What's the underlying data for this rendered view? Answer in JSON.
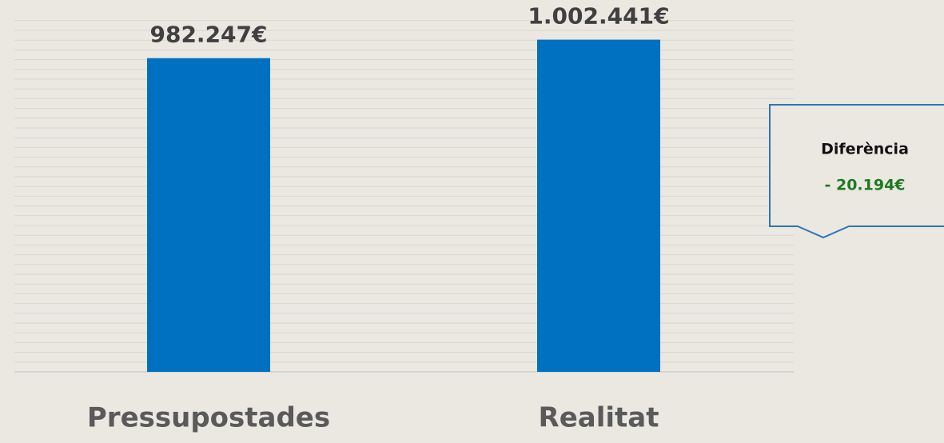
{
  "chart_data": {
    "type": "bar",
    "categories": [
      "Pressupostades",
      "Realitat"
    ],
    "values": [
      982247,
      1002441
    ],
    "value_labels": [
      "982.247€",
      "1.002.441€"
    ],
    "color": "#0070c0",
    "ylim": [
      640000,
      1030000
    ],
    "grid": true,
    "annotation": {
      "title": "Diferència",
      "text": "- 20.194€"
    }
  }
}
